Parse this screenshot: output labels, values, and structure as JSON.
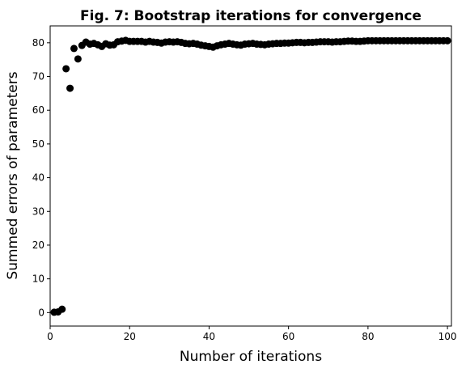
{
  "chart_data": {
    "type": "scatter",
    "title": "Fig. 7: Bootstrap iterations for convergence",
    "xlabel": "Number of iterations",
    "ylabel": "Summed errors of parameters",
    "xlim": [
      0,
      101
    ],
    "ylim": [
      -4,
      85
    ],
    "xticks": [
      0,
      20,
      40,
      60,
      80,
      100
    ],
    "yticks": [
      0,
      10,
      20,
      30,
      40,
      50,
      60,
      70,
      80
    ],
    "grid": false,
    "marker_color": "#000000",
    "series": [
      {
        "x": [
          1,
          2,
          3,
          4,
          5,
          6,
          7,
          8,
          9,
          10,
          11,
          12,
          13,
          14,
          15,
          16,
          17,
          18,
          19,
          20,
          21,
          22,
          23,
          24,
          25,
          26,
          27,
          28,
          29,
          30,
          31,
          32,
          33,
          34,
          35,
          36,
          37,
          38,
          39,
          40,
          41,
          42,
          43,
          44,
          45,
          46,
          47,
          48,
          49,
          50,
          51,
          52,
          53,
          54,
          55,
          56,
          57,
          58,
          59,
          60,
          61,
          62,
          63,
          64,
          65,
          66,
          67,
          68,
          69,
          70,
          71,
          72,
          73,
          74,
          75,
          76,
          77,
          78,
          79,
          80,
          81,
          82,
          83,
          84,
          85,
          86,
          87,
          88,
          89,
          90,
          91,
          92,
          93,
          94,
          95,
          96,
          97,
          98,
          99,
          100
        ],
        "y": [
          0.1,
          0.2,
          1.0,
          72.3,
          66.5,
          78.3,
          75.2,
          79.2,
          80.2,
          79.6,
          79.8,
          79.4,
          78.9,
          79.7,
          79.3,
          79.4,
          80.3,
          80.5,
          80.7,
          80.4,
          80.4,
          80.4,
          80.4,
          80.2,
          80.4,
          80.2,
          80.1,
          79.9,
          80.2,
          80.3,
          80.2,
          80.3,
          80.1,
          79.8,
          79.7,
          79.8,
          79.6,
          79.3,
          79.1,
          78.9,
          78.7,
          79.1,
          79.4,
          79.6,
          79.8,
          79.6,
          79.4,
          79.3,
          79.6,
          79.7,
          79.8,
          79.6,
          79.5,
          79.4,
          79.6,
          79.7,
          79.8,
          79.8,
          79.9,
          79.9,
          80.0,
          80.1,
          80.1,
          80.0,
          80.1,
          80.1,
          80.2,
          80.3,
          80.3,
          80.3,
          80.2,
          80.3,
          80.3,
          80.4,
          80.5,
          80.5,
          80.4,
          80.4,
          80.5,
          80.6,
          80.6,
          80.6,
          80.6,
          80.6,
          80.6,
          80.6,
          80.6,
          80.6,
          80.6,
          80.6,
          80.6,
          80.6,
          80.6,
          80.6,
          80.6,
          80.6,
          80.6,
          80.6,
          80.6,
          80.6
        ]
      }
    ]
  }
}
